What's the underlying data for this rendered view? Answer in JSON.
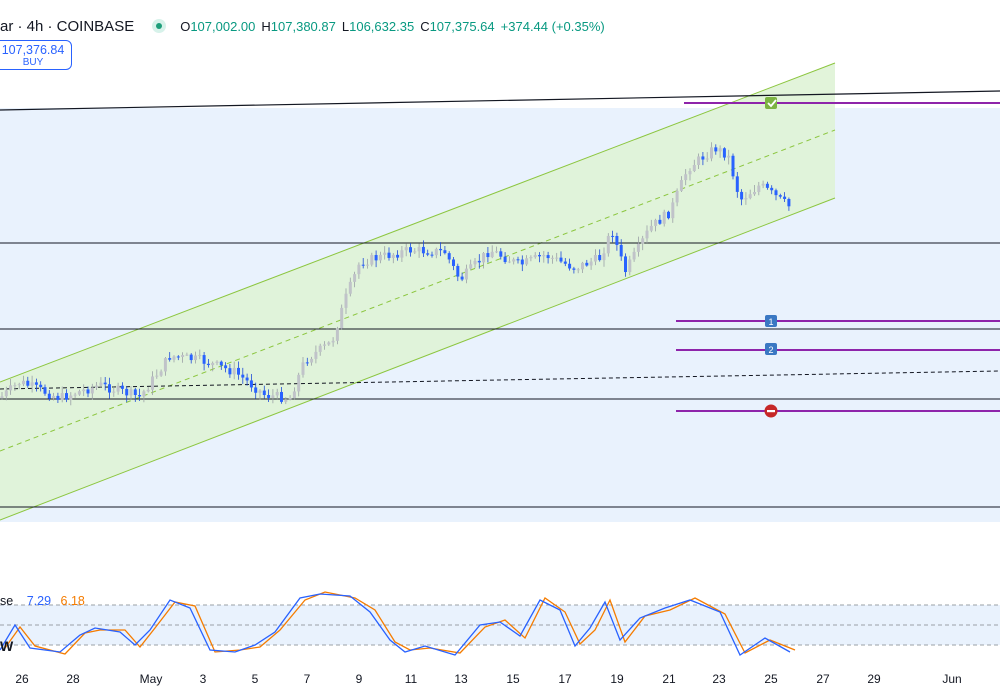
{
  "header": {
    "symbol": "ar · 4h · COINBASE",
    "status_icon": "market-open-dot-icon",
    "open_key": "O",
    "open": "107,002.00",
    "high_key": "H",
    "high": "107,380.87",
    "low_key": "L",
    "low": "106,632.35",
    "close_key": "C",
    "close": "107,375.64",
    "change": "+374.44 (+0.35%)"
  },
  "buy_box": {
    "price": "107,376.84",
    "label": "BUY"
  },
  "oscillator": {
    "label": "se",
    "value_k": "7.29",
    "value_d": "6.18",
    "side_label": "W"
  },
  "colors": {
    "up": "#c8c8cc",
    "down": "#2962ff",
    "channel_fill": "#dff3d6",
    "channel_line": "#8cc63f",
    "range_fill": "#e9f2fd",
    "purple": "#8e24aa",
    "k_line": "#2962ff",
    "d_line": "#f57c00"
  },
  "chart_data": {
    "type": "candlestick",
    "x_ticks": [
      "26",
      "28",
      "May",
      "3",
      "5",
      "7",
      "9",
      "11",
      "13",
      "15",
      "17",
      "19",
      "21",
      "23",
      "25",
      "27",
      "29",
      "Jun"
    ],
    "markers": [
      "check-marker-icon",
      "target-1-marker-icon",
      "target-2-marker-icon",
      "stop-marker-icon"
    ],
    "marker_labels": [
      "1",
      "2"
    ]
  }
}
